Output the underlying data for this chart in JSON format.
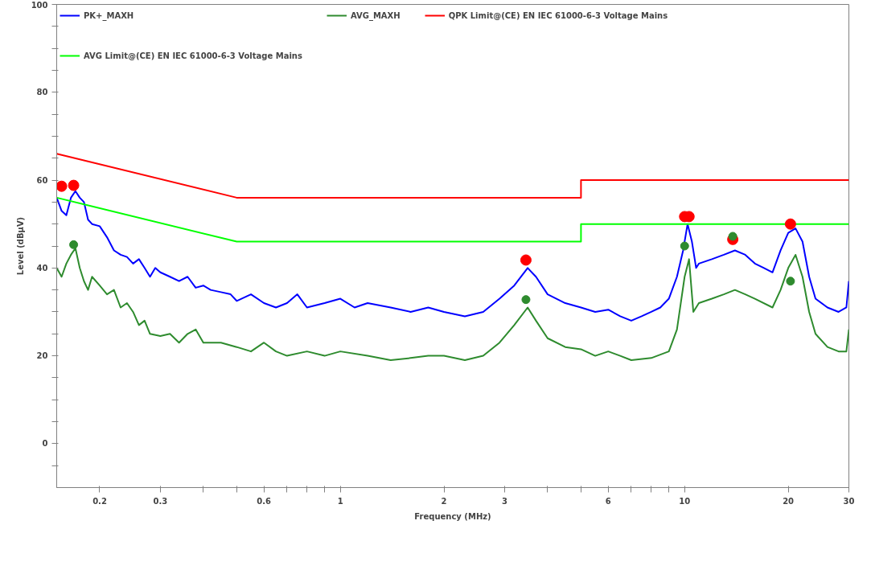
{
  "chart_data": {
    "type": "line",
    "xlabel": "Frequency (MHz)",
    "ylabel": "Level (dBµV)",
    "log": "x",
    "grid": false,
    "legend": "top",
    "line_style": "solid",
    "xlim": [
      0.15,
      30
    ],
    "ylim": [
      -10,
      100
    ],
    "xticks": [
      0.2,
      0.3,
      {
        "value": 0.4,
        "label": null
      },
      {
        "value": 0.5,
        "label": null
      },
      0.6,
      {
        "value": 0.7,
        "label": null
      },
      {
        "value": 0.8,
        "label": null
      },
      {
        "value": 0.9,
        "label": null
      },
      1,
      2,
      3,
      {
        "value": 4,
        "label": null
      },
      {
        "value": 5,
        "label": null
      },
      6,
      {
        "value": 7,
        "label": null
      },
      {
        "value": 8,
        "label": null
      },
      {
        "value": 9,
        "label": null
      },
      10,
      20,
      30
    ],
    "yticks": [
      {
        "value": -5,
        "label": null
      },
      0,
      {
        "value": 5,
        "label": null
      },
      {
        "value": 10,
        "label": null
      },
      {
        "value": 15,
        "label": null
      },
      20,
      {
        "value": 25,
        "label": null
      },
      {
        "value": 30,
        "label": null
      },
      {
        "value": 35,
        "label": null
      },
      40,
      {
        "value": 45,
        "label": null
      },
      {
        "value": 50,
        "label": null
      },
      {
        "value": 55,
        "label": null
      },
      60,
      {
        "value": 65,
        "label": null
      },
      {
        "value": 70,
        "label": null
      },
      {
        "value": 75,
        "label": null
      },
      80,
      {
        "value": 85,
        "label": null
      },
      {
        "value": 90,
        "label": null
      },
      {
        "value": 95,
        "label": null
      },
      100
    ],
    "series": [
      {
        "name": "PK+_MAXH",
        "color": "#0000ff",
        "x": [
          0.15,
          0.155,
          0.16,
          0.165,
          0.17,
          0.175,
          0.18,
          0.185,
          0.19,
          0.2,
          0.21,
          0.22,
          0.23,
          0.24,
          0.25,
          0.26,
          0.27,
          0.28,
          0.29,
          0.3,
          0.32,
          0.34,
          0.36,
          0.38,
          0.4,
          0.42,
          0.45,
          0.48,
          0.5,
          0.55,
          0.6,
          0.65,
          0.7,
          0.75,
          0.8,
          0.9,
          1.0,
          1.1,
          1.2,
          1.4,
          1.6,
          1.8,
          2.0,
          2.3,
          2.6,
          2.9,
          3.2,
          3.5,
          3.7,
          4.0,
          4.5,
          5,
          5.5,
          6,
          6.5,
          7,
          7.5,
          8,
          8.5,
          9,
          9.5,
          9.9,
          10.2,
          10.5,
          10.8,
          11,
          12,
          13,
          14,
          15,
          16,
          17,
          18,
          19,
          20,
          21,
          22,
          23,
          24,
          26,
          28,
          29.5,
          30
        ],
        "values": [
          56,
          53,
          52,
          56,
          57.5,
          56,
          55,
          51,
          50,
          49.5,
          47,
          44,
          43,
          42.5,
          41,
          42,
          40,
          38,
          40,
          39,
          38,
          37,
          38,
          35.5,
          36,
          35,
          34.5,
          34,
          32.5,
          34,
          32,
          31,
          32,
          34,
          31,
          32,
          33,
          31,
          32,
          31,
          30,
          31,
          30,
          29,
          30,
          33,
          36,
          40,
          38,
          34,
          32,
          31,
          30,
          30.5,
          29,
          28,
          29,
          30,
          31,
          33,
          38,
          44,
          50,
          46,
          40,
          41,
          42,
          43,
          44,
          43,
          41,
          40,
          39,
          44,
          48,
          49,
          46,
          38,
          33,
          31,
          30,
          31,
          37
        ]
      },
      {
        "name": "AVG_MAXH",
        "color": "#2e8b2e",
        "x": [
          0.15,
          0.155,
          0.16,
          0.165,
          0.17,
          0.175,
          0.18,
          0.185,
          0.19,
          0.2,
          0.21,
          0.22,
          0.23,
          0.24,
          0.25,
          0.26,
          0.27,
          0.28,
          0.3,
          0.32,
          0.34,
          0.36,
          0.38,
          0.4,
          0.45,
          0.5,
          0.55,
          0.6,
          0.65,
          0.7,
          0.8,
          0.9,
          1.0,
          1.2,
          1.4,
          1.6,
          1.8,
          2.0,
          2.3,
          2.6,
          2.9,
          3.2,
          3.5,
          3.7,
          4,
          4.5,
          5,
          5.5,
          6,
          6.5,
          7,
          8,
          9,
          9.5,
          10,
          10.3,
          10.6,
          11,
          12,
          13,
          14,
          15,
          16,
          18,
          19,
          20,
          21,
          22,
          23,
          24,
          26,
          28,
          29.5,
          30
        ],
        "values": [
          40,
          38,
          41,
          43,
          44.5,
          40,
          37,
          35,
          38,
          36,
          34,
          35,
          31,
          32,
          30,
          27,
          28,
          25,
          24.5,
          25,
          23,
          25,
          26,
          23,
          23,
          22,
          21,
          23,
          21,
          20,
          21,
          20,
          21,
          20,
          19,
          19.5,
          20,
          20,
          19,
          20,
          23,
          27,
          31,
          28,
          24,
          22,
          21.5,
          20,
          21,
          20,
          19,
          19.5,
          21,
          26,
          38,
          42,
          30,
          32,
          33,
          34,
          35,
          34,
          33,
          31,
          35,
          40,
          43,
          38,
          30,
          25,
          22,
          21,
          21,
          26
        ]
      },
      {
        "name": "QPK Limit@(CE) EN IEC 61000-6-3 Voltage Mains",
        "color": "#ff0000",
        "x": [
          0.15,
          0.5,
          5,
          5,
          30
        ],
        "values": [
          66,
          56,
          56,
          60,
          60
        ]
      },
      {
        "name": "AVG Limit@(CE) EN IEC 61000-6-3 Voltage Mains",
        "color": "#00ff00",
        "x": [
          0.15,
          0.5,
          5,
          5,
          30
        ],
        "values": [
          56,
          46,
          46,
          50,
          50
        ]
      },
      {
        "color": "#ff0000",
        "type": "scatter",
        "marker": "circle",
        "x": [
          0.155,
          0.168,
          3.46,
          10.0,
          10.3,
          13.8,
          20.3
        ],
        "values": [
          58.6,
          58.8,
          41.8,
          51.7,
          51.7,
          46.5,
          50
        ]
      },
      {
        "color": "#2e8b2e",
        "type": "scatter",
        "marker": "circle",
        "x": [
          0.168,
          3.46,
          10.0,
          13.8,
          20.3
        ],
        "values": [
          45.3,
          32.8,
          45,
          47.2,
          37
        ]
      }
    ]
  }
}
